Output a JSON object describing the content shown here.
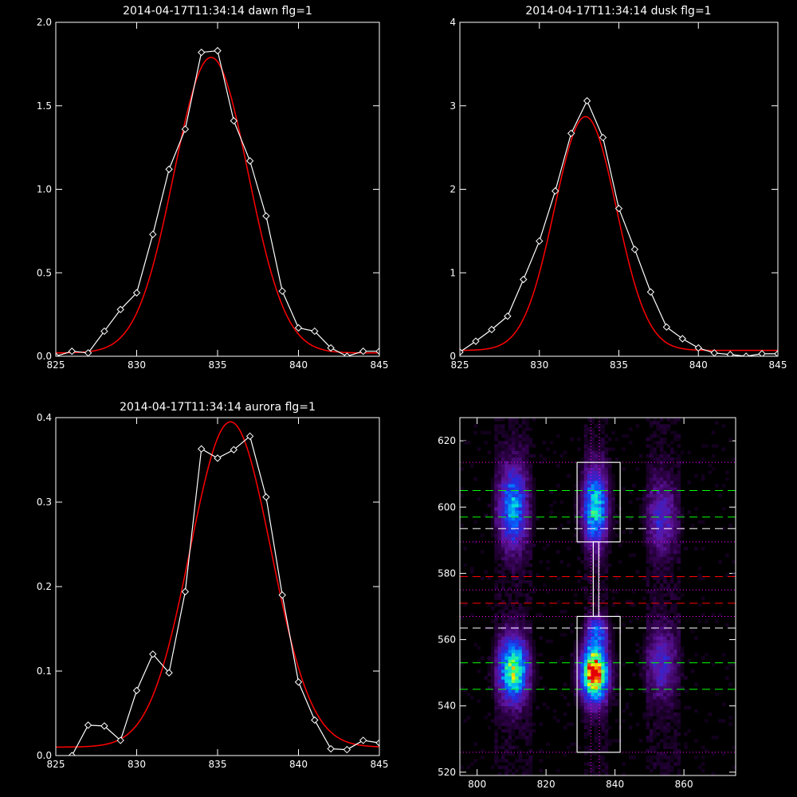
{
  "figure": {
    "background": "#000000",
    "foreground": "#ffffff",
    "data_color": "#ffffff",
    "fit_color": "#ff0000"
  },
  "chart_data": [
    {
      "id": "dawn",
      "type": "line",
      "title": "2014-04-17T11:34:14 dawn flg=1",
      "xlim": [
        825,
        845
      ],
      "ylim": [
        0,
        2.0
      ],
      "x_ticks": [
        825,
        830,
        835,
        840,
        845
      ],
      "y_ticks": [
        0.0,
        0.5,
        1.0,
        1.5,
        2.0
      ],
      "x_tick_labels": [
        "825",
        "830",
        "835",
        "840",
        "845"
      ],
      "y_tick_labels": [
        "0.0",
        "0.5",
        "1.0",
        "1.5",
        "2.0"
      ],
      "series": [
        {
          "role": "data",
          "marker": "diamond",
          "x": [
            825,
            826,
            827,
            828,
            829,
            830,
            831,
            832,
            833,
            834,
            835,
            836,
            837,
            838,
            839,
            840,
            841,
            842,
            843,
            844,
            845
          ],
          "y": [
            0.0,
            0.03,
            0.02,
            0.15,
            0.28,
            0.38,
            0.73,
            1.12,
            1.36,
            1.82,
            1.83,
            1.41,
            1.17,
            0.84,
            0.39,
            0.17,
            0.15,
            0.05,
            0.0,
            0.03,
            0.03
          ]
        },
        {
          "role": "fit",
          "shape": "gaussian",
          "center": 834.6,
          "peak": 1.77,
          "sigma": 2.3,
          "baseline": 0.02
        }
      ]
    },
    {
      "id": "dusk",
      "type": "line",
      "title": "2014-04-17T11:34:14 dusk flg=1",
      "xlim": [
        825,
        845
      ],
      "ylim": [
        0,
        4
      ],
      "x_ticks": [
        825,
        830,
        835,
        840,
        845
      ],
      "y_ticks": [
        0,
        1,
        2,
        3,
        4
      ],
      "x_tick_labels": [
        "825",
        "830",
        "835",
        "840",
        "845"
      ],
      "y_tick_labels": [
        "0",
        "1",
        "2",
        "3",
        "4"
      ],
      "series": [
        {
          "role": "data",
          "marker": "diamond",
          "x": [
            825,
            826,
            827,
            828,
            829,
            830,
            831,
            832,
            833,
            834,
            835,
            836,
            837,
            838,
            839,
            840,
            841,
            842,
            843,
            844,
            845
          ],
          "y": [
            0.05,
            0.18,
            0.32,
            0.48,
            0.92,
            1.38,
            1.98,
            2.67,
            3.06,
            2.62,
            1.77,
            1.28,
            0.77,
            0.35,
            0.21,
            0.1,
            0.04,
            0.02,
            0.0,
            0.03,
            0.03
          ]
        },
        {
          "role": "fit",
          "shape": "gaussian",
          "center": 832.9,
          "peak": 2.8,
          "sigma": 1.95,
          "baseline": 0.07
        }
      ]
    },
    {
      "id": "aurora",
      "type": "line",
      "title": "2014-04-17T11:34:14 aurora flg=1",
      "xlim": [
        825,
        845
      ],
      "ylim": [
        0,
        0.4
      ],
      "x_ticks": [
        825,
        830,
        835,
        840,
        845
      ],
      "y_ticks": [
        0.0,
        0.1,
        0.2,
        0.3,
        0.4
      ],
      "x_tick_labels": [
        "825",
        "830",
        "835",
        "840",
        "845"
      ],
      "y_tick_labels": [
        "0.0",
        "0.1",
        "0.2",
        "0.3",
        "0.4"
      ],
      "series": [
        {
          "role": "data",
          "marker": "diamond",
          "x": [
            826,
            827,
            828,
            829,
            830,
            831,
            832,
            833,
            834,
            835,
            836,
            837,
            838,
            839,
            840,
            841,
            842,
            843,
            844,
            845
          ],
          "y": [
            0.0,
            0.036,
            0.035,
            0.018,
            0.077,
            0.12,
            0.098,
            0.194,
            0.363,
            0.352,
            0.362,
            0.378,
            0.306,
            0.19,
            0.087,
            0.042,
            0.008,
            0.007,
            0.018,
            0.015
          ]
        },
        {
          "role": "fit",
          "shape": "gaussian",
          "center": 835.8,
          "peak": 0.385,
          "sigma": 2.5,
          "baseline": 0.01
        }
      ]
    },
    {
      "id": "image",
      "type": "heatmap",
      "title": "",
      "xlim": [
        795,
        875
      ],
      "ylim": [
        519,
        627
      ],
      "x_ticks": [
        800,
        820,
        840,
        860
      ],
      "y_ticks": [
        520,
        540,
        560,
        580,
        600,
        620
      ],
      "x_tick_labels": [
        "800",
        "820",
        "840",
        "860"
      ],
      "y_tick_labels": [
        "520",
        "540",
        "560",
        "580",
        "600",
        "620"
      ],
      "columns": [
        {
          "center": 810.5,
          "width": 5.5
        },
        {
          "center": 834.5,
          "width": 4.0
        },
        {
          "center": 854.0,
          "width": 5.0
        }
      ],
      "blobs": [
        {
          "x": 810.5,
          "y": 600,
          "sx": 3.0,
          "sy": 9,
          "amp": 0.5
        },
        {
          "x": 810.5,
          "y": 551,
          "sx": 3.0,
          "sy": 7,
          "amp": 0.72
        },
        {
          "x": 834.3,
          "y": 600,
          "sx": 2.6,
          "sy": 8,
          "amp": 0.62
        },
        {
          "x": 834.0,
          "y": 550,
          "sx": 2.8,
          "sy": 6,
          "amp": 1.0
        },
        {
          "x": 835.0,
          "y": 563,
          "sx": 2.2,
          "sy": 3,
          "amp": 0.35
        },
        {
          "x": 853.5,
          "y": 597,
          "sx": 3.2,
          "sy": 8,
          "amp": 0.28
        },
        {
          "x": 853.5,
          "y": 553,
          "sx": 3.2,
          "sy": 8,
          "amp": 0.28
        }
      ],
      "hlines": [
        {
          "y": 613.5,
          "color": "#ff00ff",
          "style": "dotted"
        },
        {
          "y": 605,
          "color": "#00ff00",
          "style": "dashed"
        },
        {
          "y": 597,
          "color": "#00ff00",
          "style": "dashed"
        },
        {
          "y": 593.5,
          "color": "#ffffff",
          "style": "dashed"
        },
        {
          "y": 589.5,
          "color": "#ff00ff",
          "style": "dotted"
        },
        {
          "y": 579,
          "color": "#ff0000",
          "style": "dashed"
        },
        {
          "y": 575,
          "color": "#ff00ff",
          "style": "dotted"
        },
        {
          "y": 571,
          "color": "#ff0000",
          "style": "dashed"
        },
        {
          "y": 567,
          "color": "#ff00ff",
          "style": "dotted"
        },
        {
          "y": 563.5,
          "color": "#ffffff",
          "style": "dashed"
        },
        {
          "y": 553,
          "color": "#00ff00",
          "style": "dashed"
        },
        {
          "y": 545,
          "color": "#00ff00",
          "style": "dashed"
        },
        {
          "y": 526,
          "color": "#ff00ff",
          "style": "dotted"
        }
      ],
      "vlines": [
        {
          "x": 833.0,
          "color": "#ff00ff",
          "style": "dotted"
        },
        {
          "x": 835.5,
          "color": "#ff00ff",
          "style": "dotted"
        }
      ],
      "boxes": [
        {
          "x0": 829,
          "x1": 841.5,
          "y0": 589.5,
          "y1": 613.5,
          "color": "#ffffff"
        },
        {
          "x0": 829,
          "x1": 841.5,
          "y0": 526,
          "y1": 567,
          "color": "#ffffff"
        },
        {
          "x0": 833.7,
          "x1": 835.3,
          "y0": 567,
          "y1": 589.5,
          "color": "#ffffff"
        }
      ]
    }
  ]
}
